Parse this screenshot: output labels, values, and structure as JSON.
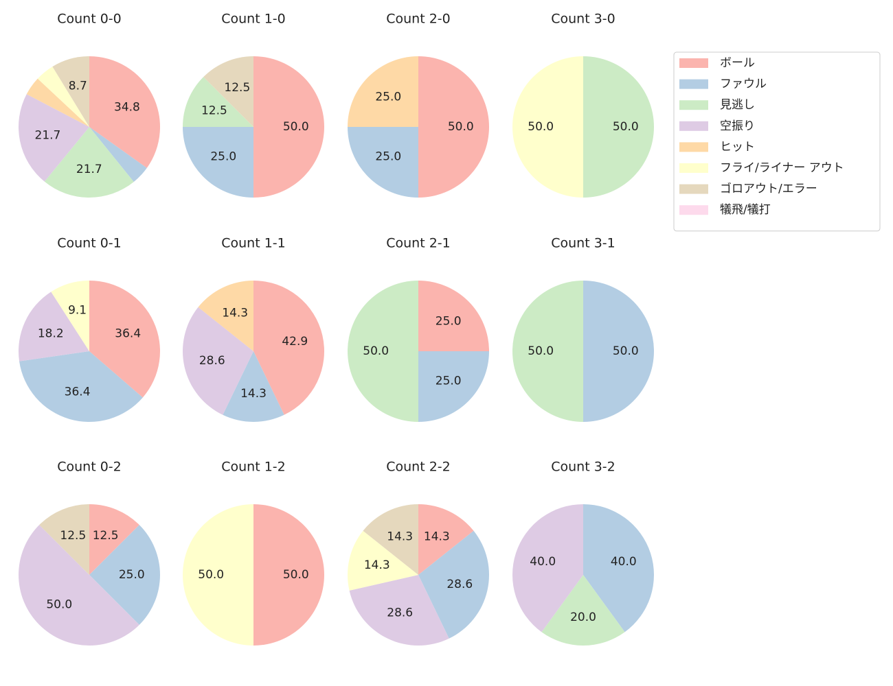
{
  "legend": {
    "position": "upper right",
    "categories": [
      "ボール",
      "ファウル",
      "見逃し",
      "空振り",
      "ヒット",
      "フライ/ライナー アウト",
      "ゴロアウト/エラー",
      "犠飛/犠打"
    ],
    "colors": [
      "#fbb4ae",
      "#b3cde3",
      "#ccebc5",
      "#decbe4",
      "#fed9a6",
      "#ffffcc",
      "#e5d8bd",
      "#fddaec"
    ]
  },
  "chart_data": [
    {
      "type": "pie",
      "title": "Count 0-0",
      "values": [
        34.8,
        4.3,
        21.7,
        21.7,
        4.3,
        4.3,
        8.7,
        0
      ],
      "value_labels": [
        "34.8",
        null,
        "21.7",
        "21.7",
        null,
        null,
        "8.7",
        null
      ]
    },
    {
      "type": "pie",
      "title": "Count 1-0",
      "values": [
        50,
        25,
        12.5,
        0,
        0,
        0,
        12.5,
        0
      ],
      "value_labels": [
        "50.0",
        "25.0",
        "12.5",
        null,
        null,
        null,
        "12.5",
        null
      ]
    },
    {
      "type": "pie",
      "title": "Count 2-0",
      "values": [
        50,
        25,
        0,
        0,
        25,
        0,
        0,
        0
      ],
      "value_labels": [
        "50.0",
        "25.0",
        null,
        null,
        "25.0",
        null,
        null,
        null
      ]
    },
    {
      "type": "pie",
      "title": "Count 3-0",
      "values": [
        0,
        0,
        50,
        0,
        0,
        50,
        0,
        0
      ],
      "value_labels": [
        null,
        null,
        "50.0",
        null,
        null,
        "50.0",
        null,
        null
      ]
    },
    {
      "type": "pie",
      "title": "Count 0-1",
      "values": [
        36.4,
        36.4,
        0,
        18.2,
        0,
        9.1,
        0,
        0
      ],
      "value_labels": [
        "36.4",
        "36.4",
        null,
        "18.2",
        null,
        "9.1",
        null,
        null
      ]
    },
    {
      "type": "pie",
      "title": "Count 1-1",
      "values": [
        42.9,
        14.3,
        0,
        28.6,
        14.3,
        0,
        0,
        0
      ],
      "value_labels": [
        "42.9",
        "14.3",
        null,
        "28.6",
        "14.3",
        null,
        null,
        null
      ]
    },
    {
      "type": "pie",
      "title": "Count 2-1",
      "values": [
        25,
        25,
        50,
        0,
        0,
        0,
        0,
        0
      ],
      "value_labels": [
        "25.0",
        "25.0",
        "50.0",
        null,
        null,
        null,
        null,
        null
      ]
    },
    {
      "type": "pie",
      "title": "Count 3-1",
      "values": [
        0,
        50,
        50,
        0,
        0,
        0,
        0,
        0
      ],
      "value_labels": [
        null,
        "50.0",
        "50.0",
        null,
        null,
        null,
        null,
        null
      ]
    },
    {
      "type": "pie",
      "title": "Count 0-2",
      "values": [
        12.5,
        25,
        0,
        50,
        0,
        0,
        12.5,
        0
      ],
      "value_labels": [
        "12.5",
        "25.0",
        null,
        "50.0",
        null,
        null,
        "12.5",
        null
      ]
    },
    {
      "type": "pie",
      "title": "Count 1-2",
      "values": [
        50,
        0,
        0,
        0,
        0,
        50,
        0,
        0
      ],
      "value_labels": [
        "50.0",
        null,
        null,
        null,
        null,
        "50.0",
        null,
        null
      ]
    },
    {
      "type": "pie",
      "title": "Count 2-2",
      "values": [
        14.3,
        28.6,
        0,
        28.6,
        0,
        14.3,
        14.3,
        0
      ],
      "value_labels": [
        "14.3",
        "28.6",
        null,
        "28.6",
        null,
        "14.3",
        "14.3",
        null
      ]
    },
    {
      "type": "pie",
      "title": "Count 3-2",
      "values": [
        0,
        40,
        20,
        40,
        0,
        0,
        0,
        0
      ],
      "value_labels": [
        null,
        "40.0",
        "20.0",
        "40.0",
        null,
        null,
        null,
        null
      ]
    }
  ]
}
